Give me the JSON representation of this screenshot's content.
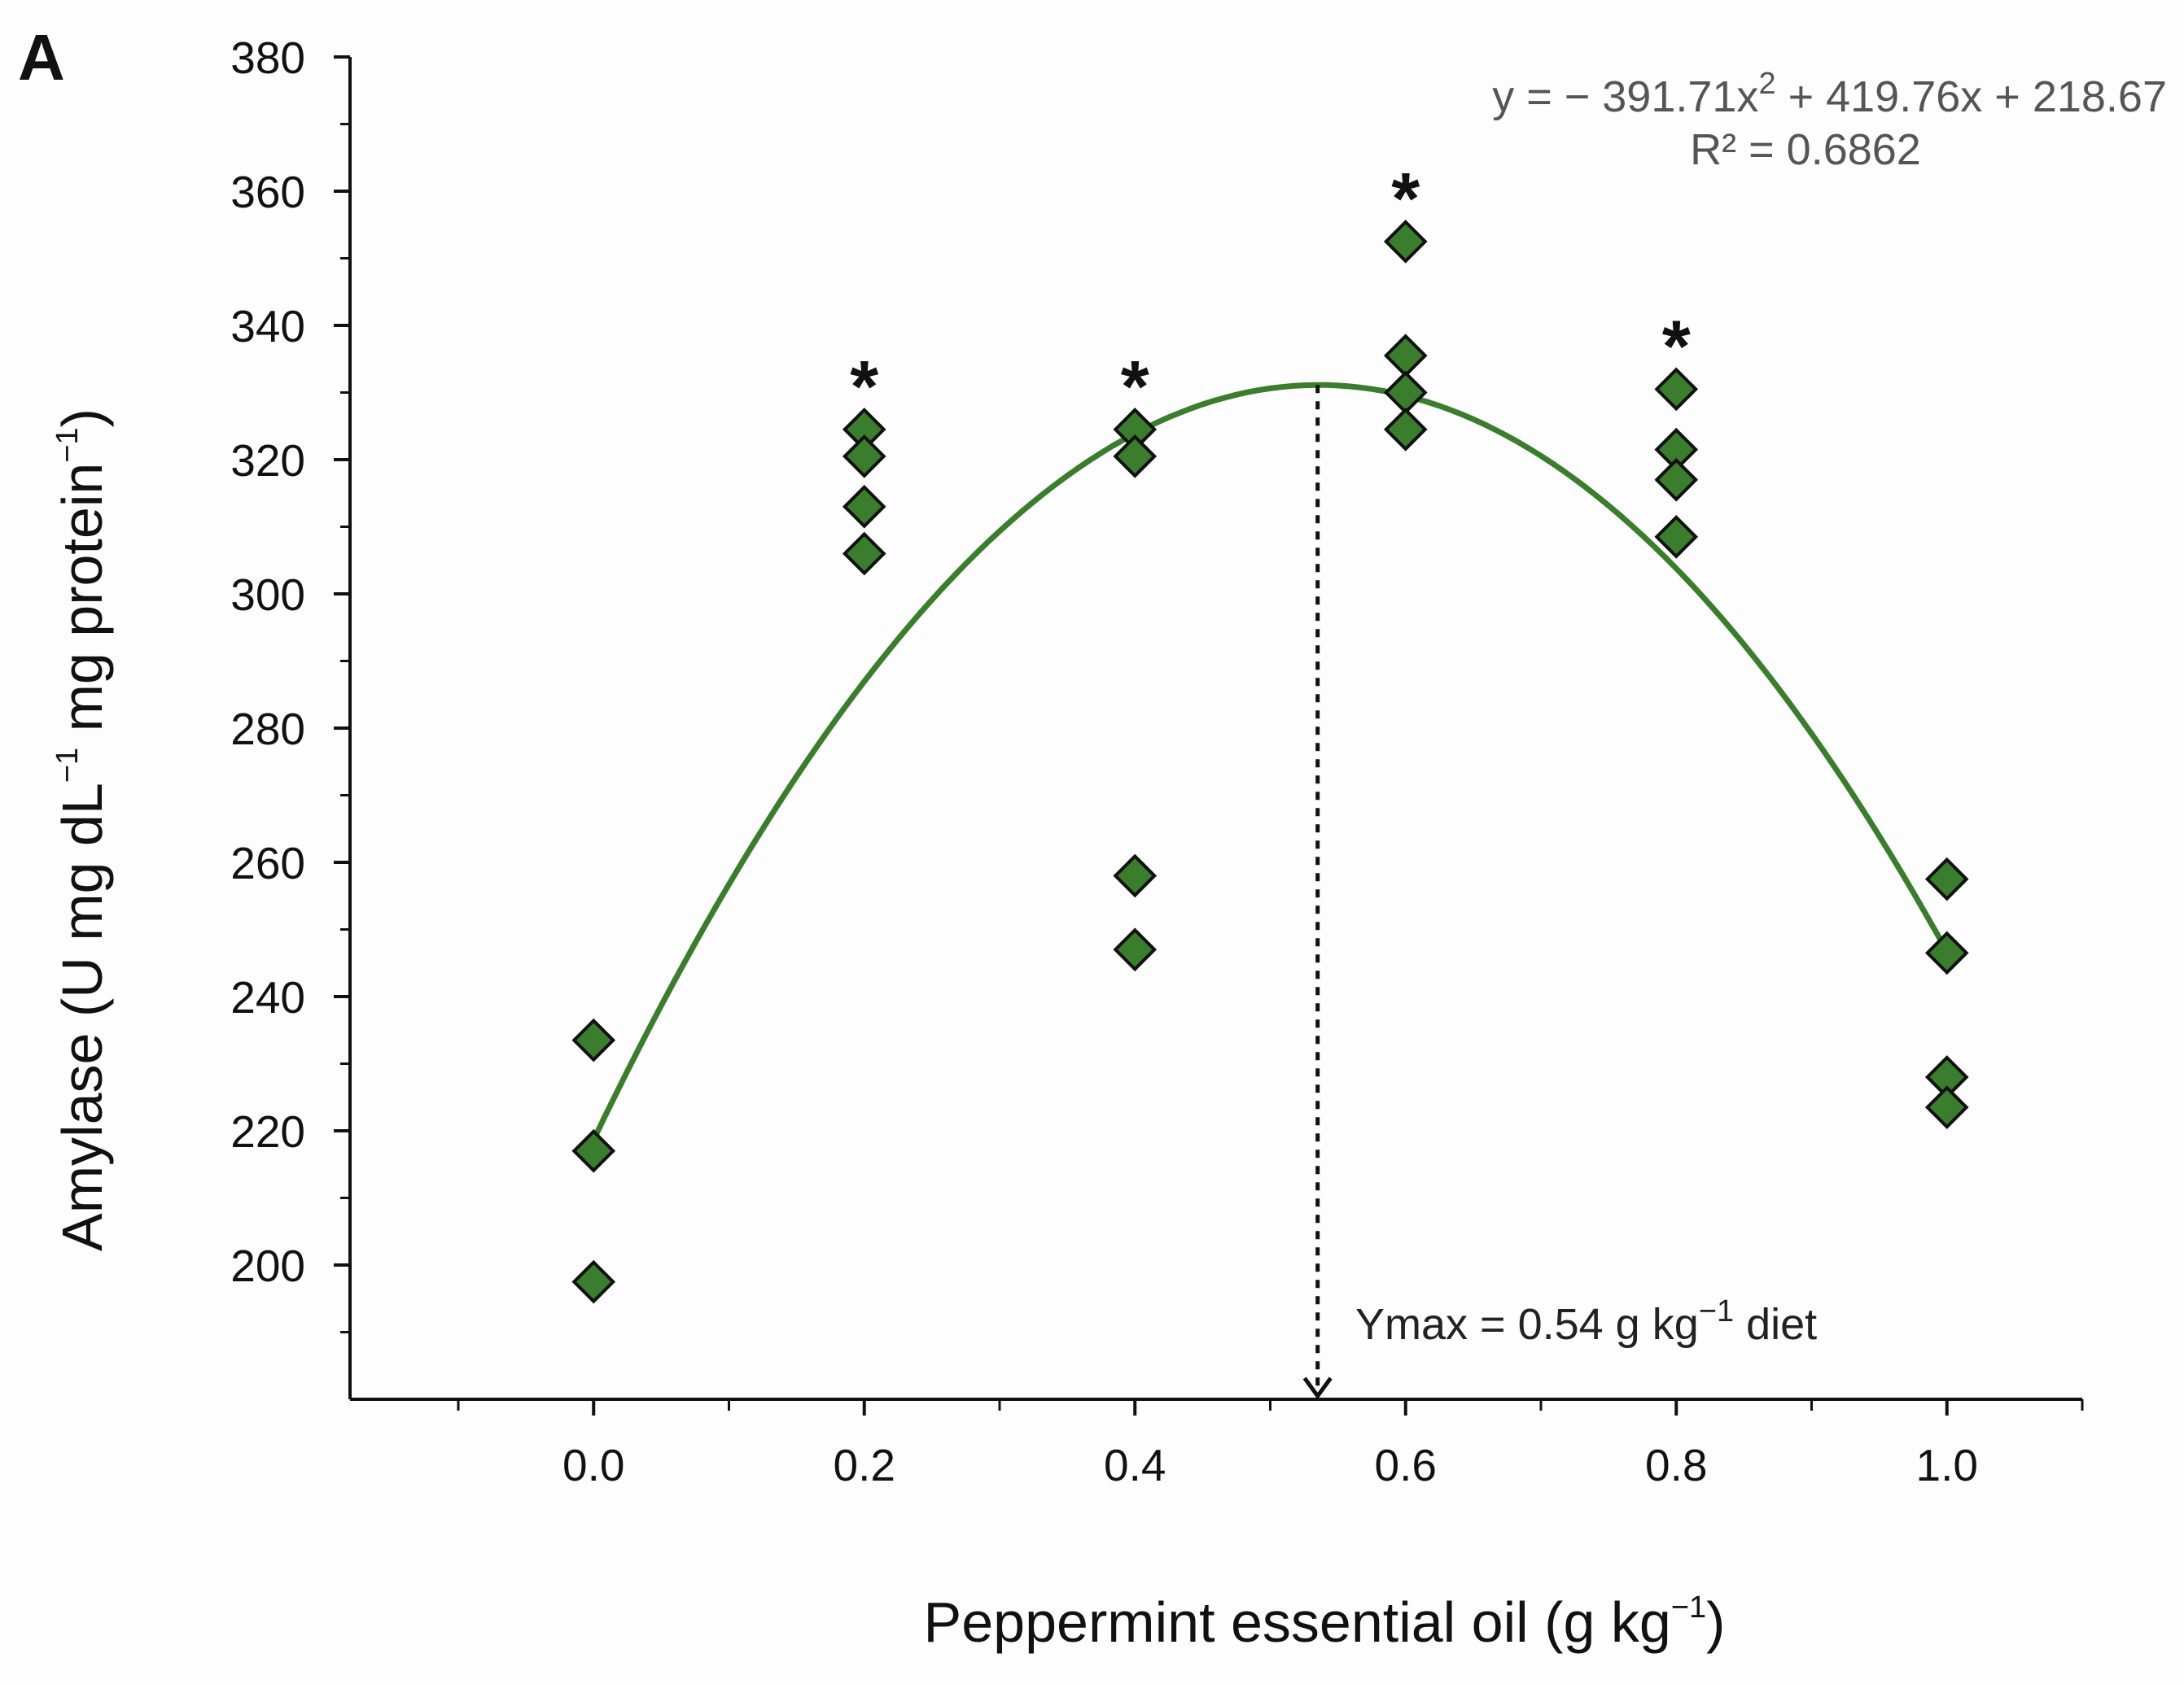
{
  "panel_label": "A",
  "chart_data": {
    "type": "scatter",
    "title": "",
    "xlabel": {
      "main": "Peppermint essential oil (g kg",
      "sup": "−1",
      "tail": ")"
    },
    "ylabel": {
      "part1": "Amylase (U mg dL",
      "sup1": "−1",
      "part2": " mg protein",
      "sup2": "−1",
      "part3": ")"
    },
    "xlim": [
      -0.18,
      1.1
    ],
    "ylim": [
      180,
      380
    ],
    "xticks": [
      0.0,
      0.2,
      0.4,
      0.6,
      0.8,
      1.0
    ],
    "xtick_labels": [
      "0.0",
      "0.2",
      "0.4",
      "0.6",
      "0.8",
      "1.0"
    ],
    "x_minor_ticks": [
      -0.1,
      0.1,
      0.3,
      0.5,
      0.7,
      0.9,
      1.1
    ],
    "yticks": [
      200,
      220,
      240,
      260,
      280,
      300,
      320,
      340,
      360,
      380
    ],
    "ytick_labels": [
      "200",
      "220",
      "240",
      "260",
      "280",
      "300",
      "320",
      "340",
      "360",
      "380"
    ],
    "y_minor_ticks": [
      190,
      210,
      230,
      250,
      270,
      290,
      310,
      330,
      350,
      370
    ],
    "series": [
      {
        "name": "Amylase",
        "marker": "diamond",
        "color": "#3a7d2c",
        "points": [
          {
            "x": 0.0,
            "y": 233.5
          },
          {
            "x": 0.0,
            "y": 217.0
          },
          {
            "x": 0.0,
            "y": 197.5
          },
          {
            "x": 0.2,
            "y": 324.5
          },
          {
            "x": 0.2,
            "y": 320.5
          },
          {
            "x": 0.2,
            "y": 313.0
          },
          {
            "x": 0.2,
            "y": 306.0
          },
          {
            "x": 0.4,
            "y": 324.5
          },
          {
            "x": 0.4,
            "y": 320.5
          },
          {
            "x": 0.4,
            "y": 258.0
          },
          {
            "x": 0.4,
            "y": 247.0
          },
          {
            "x": 0.6,
            "y": 352.5
          },
          {
            "x": 0.6,
            "y": 335.5
          },
          {
            "x": 0.6,
            "y": 330.0
          },
          {
            "x": 0.6,
            "y": 324.5
          },
          {
            "x": 0.8,
            "y": 330.5
          },
          {
            "x": 0.8,
            "y": 321.5
          },
          {
            "x": 0.8,
            "y": 317.0
          },
          {
            "x": 0.8,
            "y": 308.5
          },
          {
            "x": 1.0,
            "y": 257.5
          },
          {
            "x": 1.0,
            "y": 246.5
          },
          {
            "x": 1.0,
            "y": 228.0
          },
          {
            "x": 1.0,
            "y": 223.5
          }
        ]
      }
    ],
    "fit": {
      "type": "quadratic",
      "a": -391.71,
      "b": 419.76,
      "c": 218.67,
      "x_range": [
        0.0,
        1.0
      ],
      "color": "#3a7d2c",
      "equation_parts": {
        "pre": "y = − 391.71x",
        "sup": "2",
        "post": " + 419.76x + 218.67"
      },
      "r2_label": "R² = 0.6862"
    },
    "significance": [
      {
        "x": 0.2,
        "y": 333,
        "label": "*"
      },
      {
        "x": 0.4,
        "y": 333,
        "label": "*"
      },
      {
        "x": 0.6,
        "y": 361,
        "label": "*"
      },
      {
        "x": 0.8,
        "y": 339,
        "label": "*"
      }
    ],
    "ymax_marker": {
      "x": 0.535,
      "text_pre": "Ymax = 0.54 g kg",
      "text_sup": "−1",
      "text_post": " diet"
    }
  }
}
